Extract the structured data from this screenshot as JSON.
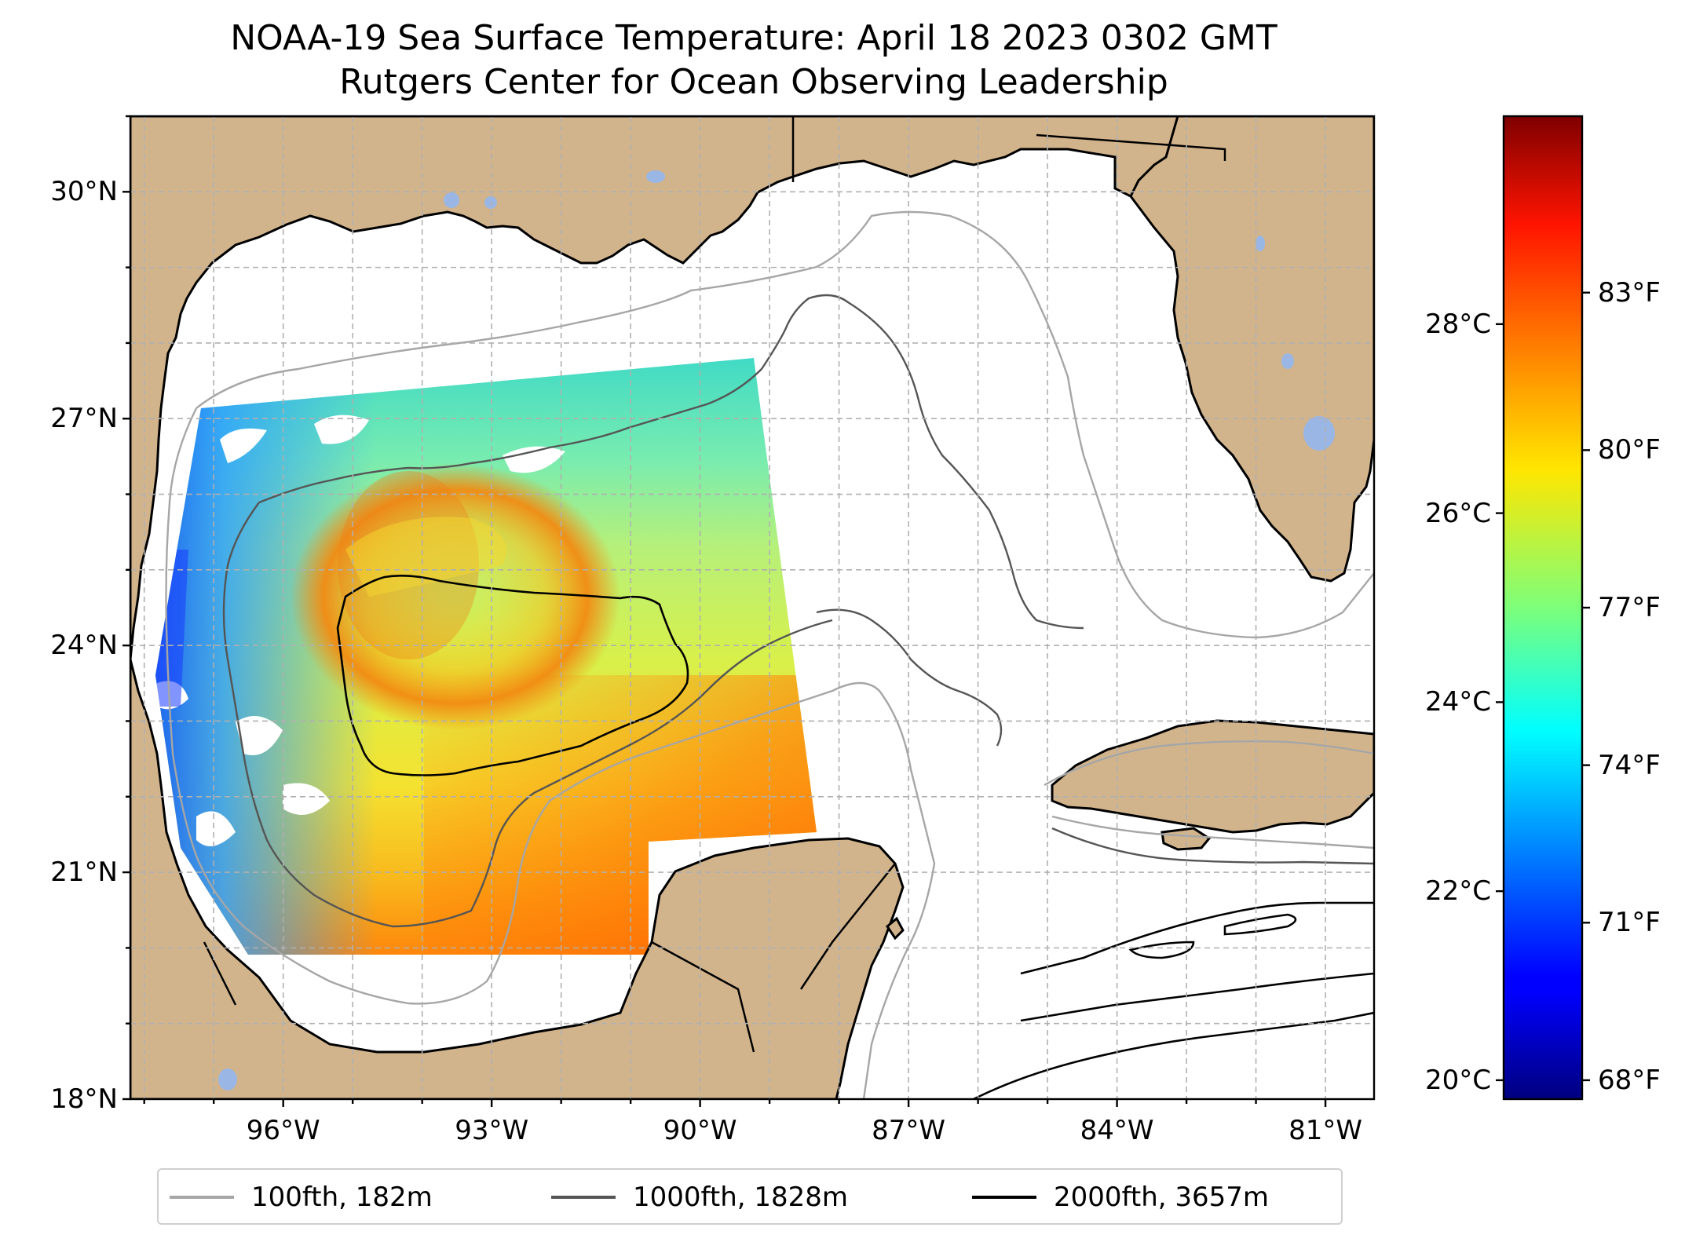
{
  "title": {
    "line1": "NOAA-19 Sea Surface Temperature: April 18 2023 0302 GMT",
    "line2": "Rutgers Center for Ocean Observing Leadership"
  },
  "map": {
    "region": "Gulf of Mexico",
    "lon_range": [
      -98.2,
      -80.3
    ],
    "lat_range": [
      18.0,
      31.0
    ],
    "land_color": "#d2b48c",
    "water_color": "#ffffff",
    "lake_color": "#9ab6e4",
    "grid": true,
    "lat_ticks": [
      {
        "value": 30,
        "label": "30°N"
      },
      {
        "value": 27,
        "label": "27°N"
      },
      {
        "value": 24,
        "label": "24°N"
      },
      {
        "value": 21,
        "label": "21°N"
      },
      {
        "value": 18,
        "label": "18°N"
      }
    ],
    "lon_ticks": [
      {
        "value": -96,
        "label": "96°W"
      },
      {
        "value": -93,
        "label": "93°W"
      },
      {
        "value": -90,
        "label": "90°W"
      },
      {
        "value": -87,
        "label": "87°W"
      },
      {
        "value": -84,
        "label": "84°W"
      },
      {
        "value": -81,
        "label": "81°W"
      }
    ]
  },
  "sst_swath": {
    "description_colors": {
      "loop_current_core": "#f08a10",
      "warm_south": "#ff6a00",
      "mid": "#c8ef3c",
      "cool_north": "#38e6b8",
      "cold_coast": "#1e78ff"
    }
  },
  "legend": {
    "items": [
      {
        "label": "100fth, 182m",
        "color": "#a6a6a6"
      },
      {
        "label": "1000fth, 1828m",
        "color": "#555555"
      },
      {
        "label": "2000fth, 3657m",
        "color": "#000000"
      }
    ],
    "placement": "lower-center"
  },
  "colorbar": {
    "colormap": "jet",
    "celsius_range": [
      19.8,
      30.2
    ],
    "celsius_ticks": [
      {
        "value": 20,
        "label": "20°C"
      },
      {
        "value": 22,
        "label": "22°C"
      },
      {
        "value": 24,
        "label": "24°C"
      },
      {
        "value": 26,
        "label": "26°C"
      },
      {
        "value": 28,
        "label": "28°C"
      }
    ],
    "fahrenheit_ticks": [
      {
        "value": 68,
        "label": "68°F"
      },
      {
        "value": 71,
        "label": "71°F"
      },
      {
        "value": 74,
        "label": "74°F"
      },
      {
        "value": 77,
        "label": "77°F"
      },
      {
        "value": 80,
        "label": "80°F"
      },
      {
        "value": 83,
        "label": "83°F"
      }
    ]
  }
}
